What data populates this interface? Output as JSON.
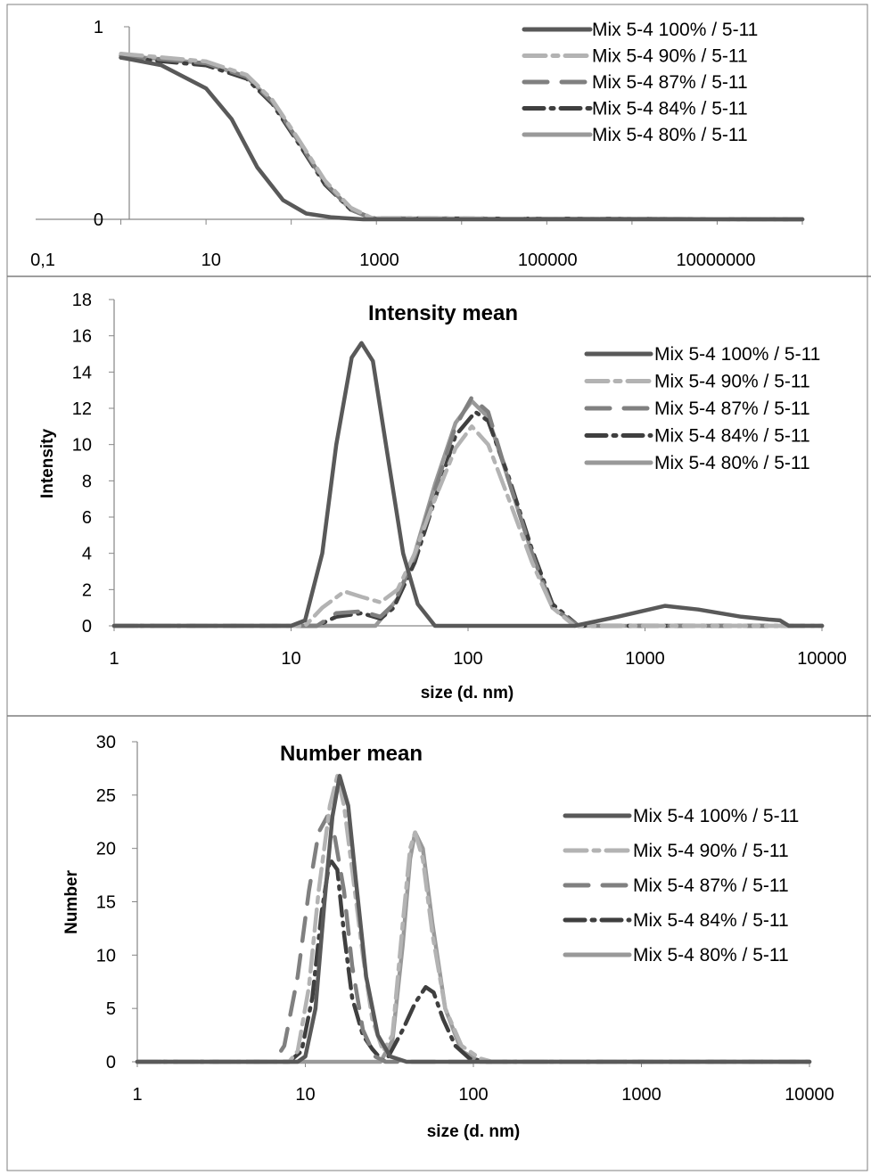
{
  "chart_data": [
    {
      "type": "line",
      "title": "",
      "xlabel": "",
      "ylabel": "",
      "x_scale": "log",
      "xlim": [
        0.1,
        100000000
      ],
      "ylim": [
        0,
        1
      ],
      "x_tick_labels": [
        "0,1",
        "10",
        "1000",
        "100000",
        "10000000"
      ],
      "y_tick_labels": [
        "0",
        "1"
      ],
      "legend_position": "top-right",
      "series": [
        {
          "name": "Mix 5-4 100% / 5-11",
          "points": [
            [
              1,
              0.84
            ],
            [
              3,
              0.8
            ],
            [
              10,
              0.68
            ],
            [
              20,
              0.52
            ],
            [
              40,
              0.27
            ],
            [
              80,
              0.1
            ],
            [
              150,
              0.03
            ],
            [
              300,
              0.01
            ],
            [
              700,
              0
            ],
            [
              100000000,
              0
            ]
          ]
        },
        {
          "name": "Mix 5-4 90% / 5-11",
          "points": [
            [
              1,
              0.86
            ],
            [
              10,
              0.82
            ],
            [
              30,
              0.75
            ],
            [
              60,
              0.62
            ],
            [
              120,
              0.42
            ],
            [
              250,
              0.2
            ],
            [
              500,
              0.06
            ],
            [
              900,
              0.005
            ],
            [
              100000000,
              0
            ]
          ]
        },
        {
          "name": "Mix 5-4 87% / 5-11",
          "points": [
            [
              1,
              0.85
            ],
            [
              10,
              0.81
            ],
            [
              30,
              0.74
            ],
            [
              60,
              0.61
            ],
            [
              120,
              0.41
            ],
            [
              250,
              0.19
            ],
            [
              500,
              0.05
            ],
            [
              900,
              0.005
            ],
            [
              100000000,
              0
            ]
          ]
        },
        {
          "name": "Mix 5-4 84% / 5-11",
          "points": [
            [
              1,
              0.84
            ],
            [
              10,
              0.8
            ],
            [
              30,
              0.73
            ],
            [
              60,
              0.6
            ],
            [
              120,
              0.4
            ],
            [
              250,
              0.18
            ],
            [
              500,
              0.05
            ],
            [
              900,
              0.005
            ],
            [
              100000000,
              0
            ]
          ]
        },
        {
          "name": "Mix 5-4 80% / 5-11",
          "points": [
            [
              1,
              0.85
            ],
            [
              10,
              0.81
            ],
            [
              30,
              0.74
            ],
            [
              60,
              0.61
            ],
            [
              120,
              0.41
            ],
            [
              250,
              0.19
            ],
            [
              500,
              0.05
            ],
            [
              900,
              0.005
            ],
            [
              100000000,
              0
            ]
          ]
        }
      ]
    },
    {
      "type": "line",
      "title": "Intensity mean",
      "xlabel": "size (d. nm)",
      "ylabel": "Intensity",
      "x_scale": "log",
      "xlim": [
        1,
        10000
      ],
      "ylim": [
        0,
        18
      ],
      "x_tick_labels": [
        "1",
        "10",
        "100",
        "1000",
        "10000"
      ],
      "y_tick_labels": [
        "0",
        "2",
        "4",
        "6",
        "8",
        "10",
        "12",
        "14",
        "16",
        "18"
      ],
      "legend_position": "top-right",
      "series": [
        {
          "name": "Mix 5-4 100% / 5-11",
          "points": [
            [
              1,
              0
            ],
            [
              10,
              0
            ],
            [
              12,
              0.3
            ],
            [
              15,
              4
            ],
            [
              18,
              10
            ],
            [
              22,
              14.8
            ],
            [
              25,
              15.6
            ],
            [
              29,
              14.6
            ],
            [
              35,
              9.5
            ],
            [
              43,
              4
            ],
            [
              52,
              1.2
            ],
            [
              65,
              0
            ],
            [
              400,
              0
            ],
            [
              700,
              0.5
            ],
            [
              1300,
              1.1
            ],
            [
              2000,
              0.9
            ],
            [
              3500,
              0.5
            ],
            [
              5000,
              0.35
            ],
            [
              5800,
              0.3
            ],
            [
              6500,
              0
            ],
            [
              10000,
              0
            ]
          ]
        },
        {
          "name": "Mix 5-4 90% / 5-11",
          "points": [
            [
              1,
              0
            ],
            [
              12,
              0
            ],
            [
              15,
              1
            ],
            [
              20,
              1.9
            ],
            [
              25,
              1.6
            ],
            [
              32,
              1.3
            ],
            [
              40,
              2
            ],
            [
              50,
              4
            ],
            [
              65,
              7
            ],
            [
              85,
              9.8
            ],
            [
              105,
              11
            ],
            [
              130,
              10
            ],
            [
              170,
              7
            ],
            [
              230,
              3.5
            ],
            [
              300,
              1
            ],
            [
              400,
              0
            ],
            [
              10000,
              0
            ]
          ]
        },
        {
          "name": "Mix 5-4 87% / 5-11",
          "points": [
            [
              1,
              0
            ],
            [
              14,
              0
            ],
            [
              18,
              0.7
            ],
            [
              25,
              0.8
            ],
            [
              32,
              0.5
            ],
            [
              38,
              1.2
            ],
            [
              50,
              3.8
            ],
            [
              65,
              7.5
            ],
            [
              85,
              11
            ],
            [
              105,
              12.6
            ],
            [
              130,
              11.8
            ],
            [
              170,
              8
            ],
            [
              230,
              4
            ],
            [
              300,
              1
            ],
            [
              420,
              0
            ],
            [
              10000,
              0
            ]
          ]
        },
        {
          "name": "Mix 5-4 84% / 5-11",
          "points": [
            [
              1,
              0
            ],
            [
              14,
              0
            ],
            [
              18,
              0.5
            ],
            [
              25,
              0.7
            ],
            [
              32,
              0.4
            ],
            [
              38,
              1
            ],
            [
              50,
              3.5
            ],
            [
              65,
              7
            ],
            [
              85,
              10.5
            ],
            [
              110,
              11.8
            ],
            [
              130,
              11.3
            ],
            [
              170,
              8.2
            ],
            [
              230,
              4.2
            ],
            [
              300,
              1.2
            ],
            [
              420,
              0
            ],
            [
              10000,
              0
            ]
          ]
        },
        {
          "name": "Mix 5-4 80% / 5-11",
          "points": [
            [
              1,
              0
            ],
            [
              30,
              0
            ],
            [
              40,
              1.5
            ],
            [
              50,
              4
            ],
            [
              65,
              7.8
            ],
            [
              85,
              11.2
            ],
            [
              105,
              12.4
            ],
            [
              130,
              11.5
            ],
            [
              170,
              8
            ],
            [
              230,
              4
            ],
            [
              300,
              1
            ],
            [
              420,
              0
            ],
            [
              10000,
              0
            ]
          ]
        }
      ]
    },
    {
      "type": "line",
      "title": "Number mean",
      "xlabel": "size (d. nm)",
      "ylabel": "Number",
      "x_scale": "log",
      "xlim": [
        1,
        10000
      ],
      "ylim": [
        0,
        30
      ],
      "x_tick_labels": [
        "1",
        "10",
        "100",
        "1000",
        "10000"
      ],
      "y_tick_labels": [
        "0",
        "5",
        "10",
        "15",
        "20",
        "25",
        "30"
      ],
      "legend_position": "right",
      "series": [
        {
          "name": "Mix 5-4 100% / 5-11",
          "points": [
            [
              1,
              0
            ],
            [
              9,
              0
            ],
            [
              10,
              0.5
            ],
            [
              11.5,
              5
            ],
            [
              13,
              15
            ],
            [
              14.5,
              23
            ],
            [
              16,
              26.8
            ],
            [
              18,
              24
            ],
            [
              20,
              17
            ],
            [
              23,
              8
            ],
            [
              27,
              2.5
            ],
            [
              32,
              0.5
            ],
            [
              40,
              0
            ],
            [
              10000,
              0
            ]
          ]
        },
        {
          "name": "Mix 5-4 90% / 5-11",
          "points": [
            [
              1,
              0
            ],
            [
              8,
              0
            ],
            [
              9,
              1
            ],
            [
              10.5,
              7
            ],
            [
              12,
              16
            ],
            [
              14,
              24
            ],
            [
              15.5,
              26.8
            ],
            [
              17,
              24
            ],
            [
              19,
              18
            ],
            [
              22,
              10
            ],
            [
              25,
              4
            ],
            [
              29,
              1
            ],
            [
              33,
              2.5
            ],
            [
              38,
              13
            ],
            [
              42,
              20
            ],
            [
              45,
              21.5
            ],
            [
              50,
              19
            ],
            [
              57,
              12
            ],
            [
              68,
              5
            ],
            [
              85,
              1.5
            ],
            [
              110,
              0.3
            ],
            [
              130,
              0
            ],
            [
              10000,
              0
            ]
          ]
        },
        {
          "name": "Mix 5-4 87% / 5-11",
          "points": [
            [
              1,
              0
            ],
            [
              6.5,
              0
            ],
            [
              7.5,
              1.5
            ],
            [
              9,
              8
            ],
            [
              10.5,
              16
            ],
            [
              12,
              21.5
            ],
            [
              13.5,
              23
            ],
            [
              15,
              21
            ],
            [
              17,
              16
            ],
            [
              19,
              9
            ],
            [
              22,
              3
            ],
            [
              26,
              0.5
            ],
            [
              30,
              0
            ],
            [
              10000,
              0
            ]
          ]
        },
        {
          "name": "Mix 5-4 84% / 5-11",
          "points": [
            [
              1,
              0
            ],
            [
              8,
              0
            ],
            [
              9.5,
              1
            ],
            [
              11,
              6
            ],
            [
              12.5,
              14
            ],
            [
              14,
              19
            ],
            [
              15.5,
              18
            ],
            [
              17,
              12
            ],
            [
              19,
              6
            ],
            [
              22,
              2.5
            ],
            [
              25,
              1.2
            ],
            [
              28,
              0.3
            ],
            [
              30,
              0
            ],
            [
              38,
              3
            ],
            [
              45,
              5.5
            ],
            [
              52,
              7
            ],
            [
              58,
              6.5
            ],
            [
              66,
              4
            ],
            [
              78,
              1.5
            ],
            [
              95,
              0.3
            ],
            [
              120,
              0
            ],
            [
              10000,
              0
            ]
          ]
        },
        {
          "name": "Mix 5-4 80% / 5-11",
          "points": [
            [
              1,
              0
            ],
            [
              28,
              0
            ],
            [
              33,
              2
            ],
            [
              38,
              11
            ],
            [
              42,
              19
            ],
            [
              45,
              21.5
            ],
            [
              50,
              20
            ],
            [
              57,
              13
            ],
            [
              68,
              5
            ],
            [
              85,
              1
            ],
            [
              110,
              0
            ],
            [
              10000,
              0
            ]
          ]
        }
      ]
    }
  ],
  "series_styles": [
    {
      "color": "#595959",
      "dash": "none"
    },
    {
      "color": "#b3b3b3",
      "dash": "24 8 6 8"
    },
    {
      "color": "#808080",
      "dash": "26 16"
    },
    {
      "color": "#3f3f3f",
      "dash": "22 8 3 8"
    },
    {
      "color": "#999999",
      "dash": "none"
    }
  ]
}
